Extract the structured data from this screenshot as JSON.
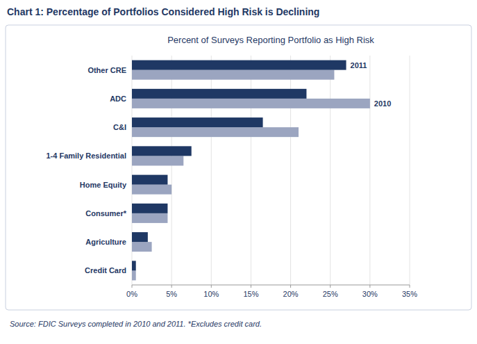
{
  "chart_data": {
    "type": "bar",
    "orientation": "horizontal",
    "title": "Chart 1:  Percentage of Portfolios Considered High Risk is Declining",
    "subtitle": "Percent of Surveys Reporting Portfolio as High Risk",
    "source": "Source:  FDIC Surveys completed in 2010 and 2011.  *Excludes credit card.",
    "categories": [
      "Credit Card",
      "Agriculture",
      "Consumer*",
      "Home Equity",
      "1-4 Family Residential",
      "C&I",
      "ADC",
      "Other CRE"
    ],
    "series": [
      {
        "name": "2010",
        "color": "#9ba5c0",
        "values": [
          0.5,
          2.5,
          4.5,
          5.0,
          6.5,
          21.0,
          30.0,
          25.5
        ]
      },
      {
        "name": "2011",
        "color": "#1f3864",
        "values": [
          0.5,
          2.0,
          4.5,
          4.5,
          7.5,
          16.5,
          22.0,
          27.0
        ]
      }
    ],
    "xlim": [
      0,
      35
    ],
    "xticks": [
      {
        "value": 0,
        "label": "0%"
      },
      {
        "value": 5,
        "label": "5%"
      },
      {
        "value": 10,
        "label": "10%"
      },
      {
        "value": 15,
        "label": "15%"
      },
      {
        "value": 20,
        "label": "20%"
      },
      {
        "value": 25,
        "label": "25%"
      },
      {
        "value": 30,
        "label": "30%"
      },
      {
        "value": 35,
        "label": "35%"
      }
    ],
    "grid": true
  }
}
